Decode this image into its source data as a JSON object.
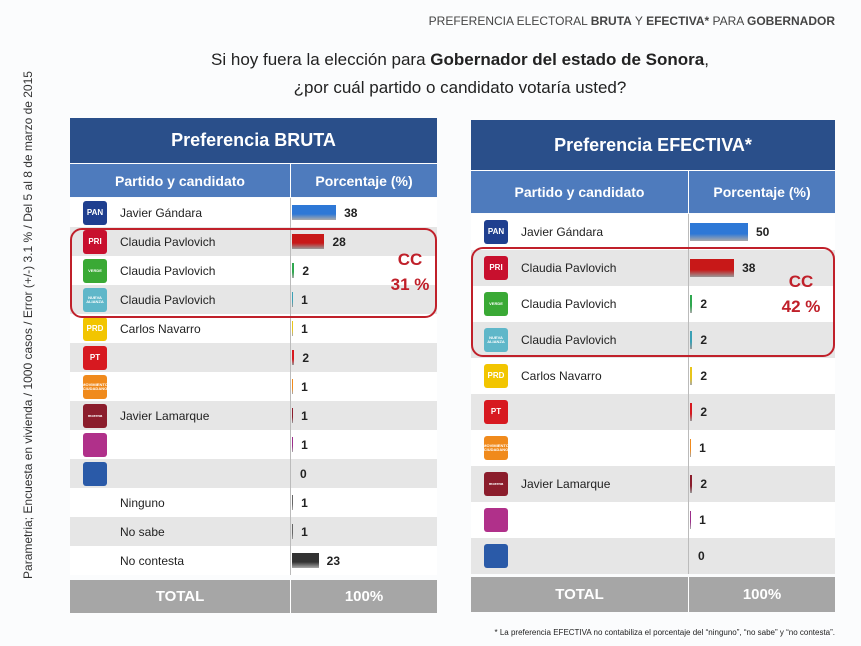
{
  "header": {
    "segments": [
      {
        "text": "PREFERENCIA ELECTORAL ",
        "bold": false
      },
      {
        "text": "BRUTA",
        "bold": true
      },
      {
        "text": " Y ",
        "bold": false
      },
      {
        "text": "EFECTIVA*",
        "bold": true
      },
      {
        "text": " PARA ",
        "bold": false
      },
      {
        "text": "GOBERNADOR",
        "bold": true
      }
    ]
  },
  "question": {
    "lines": [
      [
        {
          "text": "Si hoy fuera la elección para ",
          "bold": false
        },
        {
          "text": "Gobernador del estado de Sonora",
          "bold": true
        },
        {
          "text": ",",
          "bold": false
        }
      ],
      [
        {
          "text": "¿por cuál partido o candidato votaría usted?",
          "bold": false
        }
      ]
    ]
  },
  "source": "Parametria; Encuesta en vivienda / 1000 casos / Error (+/-) 3.1 % / Del 5 al 8 de marzo de 2015",
  "tables": [
    {
      "title": "Preferencia BRUTA",
      "columns": [
        "Partido y candidato",
        "Porcentaje (%)"
      ],
      "rows": [
        {
          "party": "PAN",
          "logo_color": "#1f3f8f",
          "candidate": "Javier Gándara",
          "value": 38,
          "color": "#2e78d6"
        },
        {
          "party": "PRI",
          "logo_color": "#c8102e",
          "candidate": "Claudia Pavlovich",
          "value": 28,
          "color": "#c81818"
        },
        {
          "party": "VERDE",
          "logo_color": "#3aa935",
          "candidate": "Claudia Pavlovich",
          "value": 2,
          "color": "#2fa84f"
        },
        {
          "party": "NUEVA ALIANZA",
          "logo_color": "#5fb7c9",
          "candidate": "Claudia Pavlovich",
          "value": 1,
          "color": "#3aa0b5"
        },
        {
          "party": "PRD",
          "logo_color": "#f2c500",
          "candidate": "Carlos Navarro",
          "value": 1,
          "color": "#e8c51a"
        },
        {
          "party": "PT",
          "logo_color": "#d71920",
          "value": 2,
          "color": "#d71920"
        },
        {
          "party": "MOVIMIENTO CIUDADANO",
          "logo_color": "#f08a1c",
          "value": 1,
          "color": "#f08a1c"
        },
        {
          "party": "morena",
          "logo_color": "#8b1d2c",
          "candidate": "Javier Lamarque",
          "value": 1,
          "color": "#8b1d2c"
        },
        {
          "logo_color": "#b0308a",
          "value": 1,
          "color": "#9b2d8a"
        },
        {
          "logo_color": "#2a5aa8",
          "value": 0,
          "color": "#2a5aa8"
        },
        {
          "candidate": "Ninguno",
          "value": 1,
          "color": "#666666"
        },
        {
          "candidate": "No sabe",
          "value": 1,
          "color": "#666666"
        },
        {
          "candidate": "No contesta",
          "value": 23,
          "color": "#333333"
        }
      ],
      "coalition": {
        "label": "CC",
        "value": 31,
        "value_label": "31 %"
      },
      "total": {
        "label": "TOTAL",
        "value": 100,
        "value_label": "100%"
      }
    },
    {
      "title": "Preferencia EFECTIVA*",
      "columns": [
        "Partido y candidato",
        "Porcentaje (%)"
      ],
      "rows": [
        {
          "party": "PAN",
          "logo_color": "#1f3f8f",
          "candidate": "Javier Gándara",
          "value": 50,
          "color": "#2e78d6"
        },
        {
          "party": "PRI",
          "logo_color": "#c8102e",
          "candidate": "Claudia Pavlovich",
          "value": 38,
          "color": "#c81818"
        },
        {
          "party": "VERDE",
          "logo_color": "#3aa935",
          "candidate": "Claudia Pavlovich",
          "value": 2,
          "color": "#2fa84f"
        },
        {
          "party": "NUEVA ALIANZA",
          "logo_color": "#5fb7c9",
          "candidate": "Claudia Pavlovich",
          "value": 2,
          "color": "#3aa0b5"
        },
        {
          "party": "PRD",
          "logo_color": "#f2c500",
          "candidate": "Carlos Navarro",
          "value": 2,
          "color": "#e8c51a"
        },
        {
          "party": "PT",
          "logo_color": "#d71920",
          "value": 2,
          "color": "#d71920"
        },
        {
          "party": "MOVIMIENTO CIUDADANO",
          "logo_color": "#f08a1c",
          "value": 1,
          "color": "#f08a1c"
        },
        {
          "party": "morena",
          "logo_color": "#8b1d2c",
          "candidate": "Javier Lamarque",
          "value": 2,
          "color": "#8b1d2c"
        },
        {
          "logo_color": "#b0308a",
          "value": 1,
          "color": "#9b2d8a"
        },
        {
          "logo_color": "#2a5aa8",
          "value": 0,
          "color": "#2a5aa8"
        }
      ],
      "coalition": {
        "label": "CC",
        "value": 42,
        "value_label": "42 %"
      },
      "total": {
        "label": "TOTAL",
        "value": 100,
        "value_label": "100%"
      }
    }
  ],
  "footnote": "* La preferencia EFECTIVA no contabiliza el porcentaje del “ninguno”, “no sabe” y “no contesta”."
}
